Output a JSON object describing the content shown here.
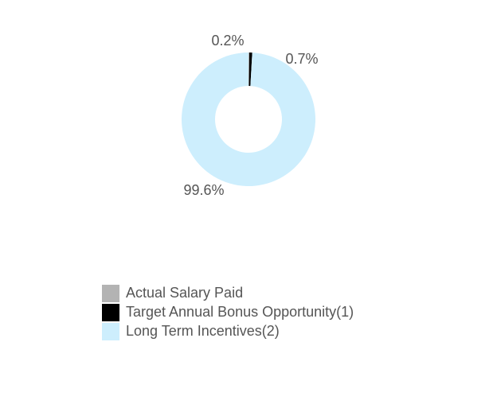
{
  "chart_data": {
    "type": "pie",
    "donut": true,
    "categories": [
      "Actual Salary Paid",
      "Target Annual Bonus Opportunity(1)",
      "Long Term Incentives(2)"
    ],
    "values": [
      0.2,
      0.7,
      99.6
    ],
    "value_labels": [
      "0.2%",
      "0.7%",
      "99.6%"
    ],
    "colors": [
      "#b3b3b3",
      "#000000",
      "#cdeefd"
    ],
    "legend": "bottom"
  }
}
